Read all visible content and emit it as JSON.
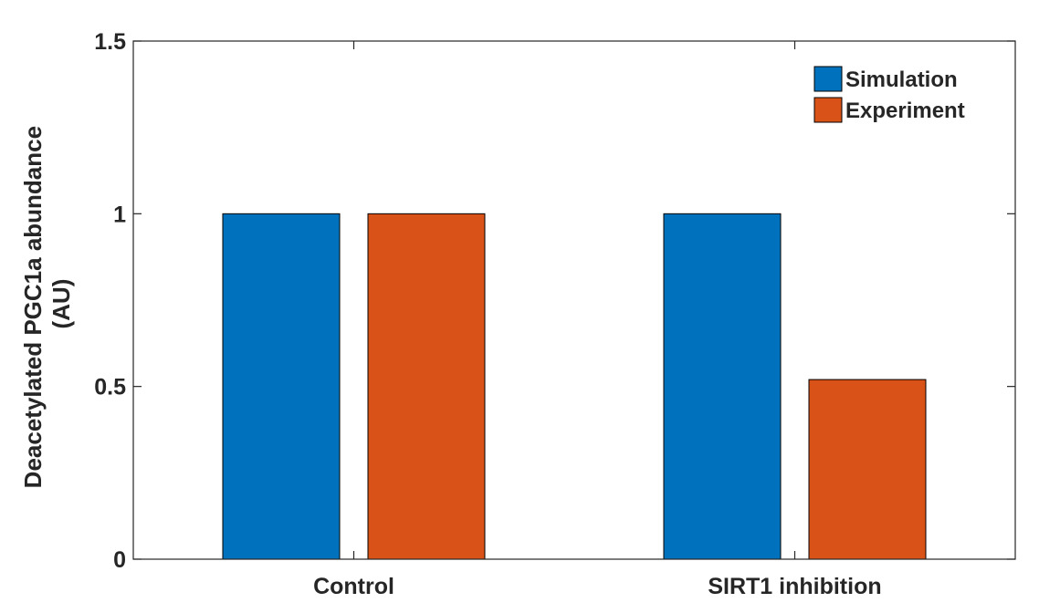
{
  "chart_data": {
    "type": "bar",
    "categories": [
      "Control",
      "SIRT1 inhibition"
    ],
    "series": [
      {
        "name": "Simulation",
        "values": [
          1.0,
          1.0
        ],
        "color": "#0072BD"
      },
      {
        "name": "Experiment",
        "values": [
          1.0,
          0.52
        ],
        "color": "#D95319"
      }
    ],
    "ylabel": [
      "Deacetylated PGC1a abundance",
      "(AU)"
    ],
    "xlabel": "",
    "ylim": [
      0,
      1.5
    ],
    "yticks": [
      0,
      0.5,
      1,
      1.5
    ],
    "ytick_labels": [
      "0",
      "0.5",
      "1",
      "1.5"
    ],
    "legend_position": "top-right",
    "grid": false
  }
}
